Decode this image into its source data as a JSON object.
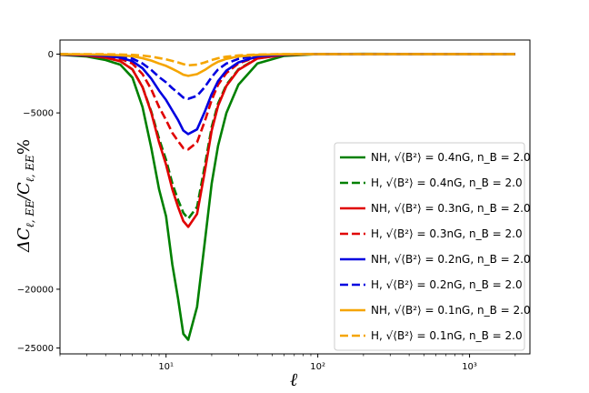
{
  "chart_data": {
    "type": "line",
    "xscale": "log",
    "xlim": [
      2.0,
      2500
    ],
    "ylim": [
      -25500,
      1200
    ],
    "grid": false,
    "legend_placement": "center-right",
    "xlabel": "ℓ",
    "ylabel": "ΔC_{ℓ,EE}/C_{ℓ,EE}%",
    "yticks": [
      0,
      -5000,
      -20000,
      -25000
    ],
    "ytick_labels": [
      "0",
      "−5000",
      "−20000",
      "−25000"
    ],
    "xticks": [
      10,
      100,
      1000
    ],
    "xtick_labels": [
      "10¹",
      "10²",
      "10³"
    ],
    "x": [
      2,
      3,
      4,
      5,
      6,
      7,
      8,
      9,
      10,
      11,
      12,
      13,
      14,
      16,
      18,
      20,
      22,
      25,
      30,
      40,
      60,
      100,
      200,
      500,
      1000,
      2000
    ],
    "series": [
      {
        "name": "NH, √⟨B²⟩ = 0.4nG, n_B = 2.0",
        "color": "#008000",
        "dash": "solid",
        "values": [
          -50,
          -200,
          -500,
          -900,
          -2000,
          -4500,
          -8000,
          -11500,
          -13800,
          -17900,
          -20800,
          -23800,
          -24300,
          -21500,
          -16000,
          -11000,
          -7800,
          -5000,
          -2600,
          -800,
          -150,
          0,
          20,
          10,
          0,
          0
        ]
      },
      {
        "name": "H, √⟨B²⟩ = 0.4nG, n_B = 2.0",
        "color": "#008000",
        "dash": "dashed",
        "values": [
          -30,
          -120,
          -300,
          -600,
          -1300,
          -2800,
          -4900,
          -7200,
          -9000,
          -11000,
          -12400,
          -13500,
          -14000,
          -13000,
          -9500,
          -6200,
          -4200,
          -2600,
          -1300,
          -350,
          -60,
          0,
          10,
          5,
          0,
          0
        ]
      },
      {
        "name": "NH, √⟨B²⟩ = 0.3nG, n_B = 2.0",
        "color": "#e00000",
        "dash": "solid",
        "values": [
          -30,
          -120,
          -300,
          -600,
          -1300,
          -2800,
          -5000,
          -7500,
          -9400,
          -11500,
          -13000,
          -14200,
          -14700,
          -13600,
          -10000,
          -6500,
          -4400,
          -2700,
          -1350,
          -370,
          -60,
          0,
          10,
          5,
          0,
          0
        ]
      },
      {
        "name": "H, √⟨B²⟩ = 0.3nG, n_B = 2.0",
        "color": "#e00000",
        "dash": "dashed",
        "values": [
          -20,
          -80,
          -200,
          -400,
          -800,
          -1700,
          -3000,
          -4500,
          -5600,
          -6700,
          -7400,
          -8000,
          -8100,
          -7500,
          -5700,
          -3900,
          -2600,
          -1600,
          -800,
          -220,
          -40,
          0,
          5,
          0,
          0,
          0
        ]
      },
      {
        "name": "NH, √⟨B²⟩ = 0.2nG, n_B = 2.0",
        "color": "#0000e0",
        "dash": "solid",
        "values": [
          -20,
          -60,
          -150,
          -300,
          -600,
          -1200,
          -2100,
          -3100,
          -3900,
          -4800,
          -5600,
          -6500,
          -6800,
          -6400,
          -4900,
          -3400,
          -2300,
          -1400,
          -700,
          -190,
          -30,
          0,
          5,
          0,
          0,
          0
        ]
      },
      {
        "name": "H, √⟨B²⟩ = 0.2nG, n_B = 2.0",
        "color": "#0000e0",
        "dash": "dashed",
        "values": [
          -10,
          -40,
          -100,
          -200,
          -380,
          -800,
          -1350,
          -1950,
          -2400,
          -2900,
          -3300,
          -3700,
          -3800,
          -3550,
          -2800,
          -1950,
          -1300,
          -800,
          -400,
          -110,
          -20,
          0,
          0,
          0,
          0,
          0
        ]
      },
      {
        "name": "NH, √⟨B²⟩ = 0.1nG, n_B = 2.0",
        "color": "#f5a500",
        "dash": "solid",
        "values": [
          0,
          -20,
          -50,
          -100,
          -180,
          -350,
          -550,
          -800,
          -1000,
          -1250,
          -1500,
          -1750,
          -1850,
          -1700,
          -1350,
          -950,
          -650,
          -400,
          -200,
          -60,
          -10,
          0,
          0,
          0,
          0,
          0
        ]
      },
      {
        "name": "H, √⟨B²⟩ = 0.1nG, n_B = 2.0",
        "color": "#f5a500",
        "dash": "dashed",
        "values": [
          0,
          0,
          -10,
          -30,
          -60,
          -120,
          -220,
          -330,
          -450,
          -580,
          -700,
          -850,
          -950,
          -900,
          -700,
          -500,
          -350,
          -220,
          -110,
          -30,
          0,
          0,
          0,
          0,
          0,
          0
        ]
      }
    ]
  }
}
